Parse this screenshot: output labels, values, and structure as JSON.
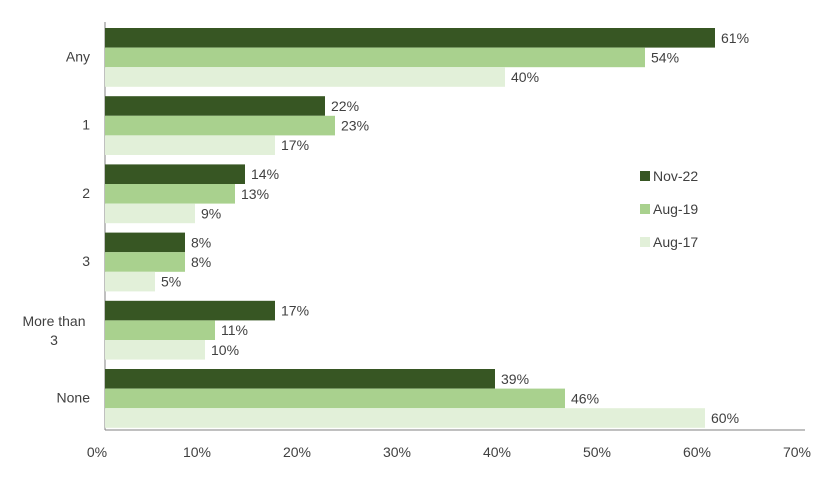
{
  "chart_data": {
    "type": "bar",
    "orientation": "horizontal",
    "title": "",
    "xlabel": "",
    "ylabel": "",
    "categories": [
      "Any",
      "1",
      "2",
      "3",
      "More than 3",
      "None"
    ],
    "series": [
      {
        "name": "Nov-22",
        "color": "#375623",
        "values": [
          61,
          22,
          14,
          8,
          17,
          39
        ],
        "labels": [
          "61%",
          "22%",
          "14%",
          "8%",
          "17%",
          "39%"
        ]
      },
      {
        "name": "Aug-19",
        "color": "#a9d18e",
        "values": [
          54,
          23,
          13,
          8,
          11,
          46
        ],
        "labels": [
          "54%",
          "23%",
          "13%",
          "8%",
          "11%",
          "46%"
        ]
      },
      {
        "name": "Aug-17",
        "color": "#e2f0d9",
        "values": [
          40,
          17,
          9,
          5,
          10,
          60
        ],
        "labels": [
          "40%",
          "17%",
          "9%",
          "5%",
          "10%",
          "60%"
        ]
      }
    ],
    "xlim": [
      0,
      70
    ],
    "x_ticks": [
      "0%",
      "10%",
      "20%",
      "30%",
      "40%",
      "50%",
      "60%",
      "70%"
    ],
    "grid": false,
    "legend_position": "right"
  }
}
